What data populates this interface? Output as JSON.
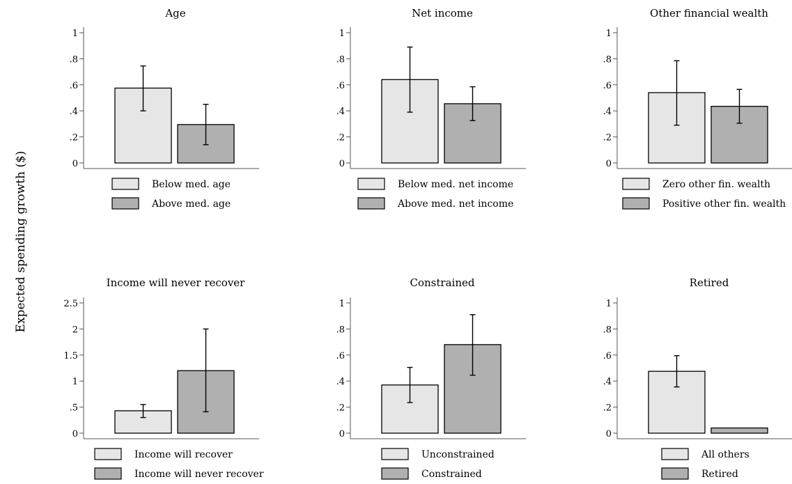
{
  "figure": {
    "ylabel": "Expected spending growth ($)",
    "colors": {
      "bar_light": "#e6e6e6",
      "bar_dark": "#b0b0b0",
      "stroke": "#000000",
      "axis": "#555555"
    }
  },
  "chart_data": [
    {
      "type": "bar",
      "title": "Age",
      "categories": [
        "Below med. age",
        "Above med. age"
      ],
      "values": [
        0.575,
        0.295
      ],
      "ci": [
        [
          0.4,
          0.745
        ],
        [
          0.14,
          0.45
        ]
      ],
      "ylim": [
        0,
        1
      ],
      "yticks": [
        0,
        0.2,
        0.4,
        0.6,
        0.8,
        1
      ],
      "yticklabels": [
        "0",
        ".2",
        ".4",
        ".6",
        ".8",
        "1"
      ],
      "legend": [
        "Below med. age",
        "Above med. age"
      ],
      "legend_position": "bottom"
    },
    {
      "type": "bar",
      "title": "Net income",
      "categories": [
        "Below med. net income",
        "Above med. net income"
      ],
      "values": [
        0.64,
        0.455
      ],
      "ci": [
        [
          0.39,
          0.89
        ],
        [
          0.325,
          0.585
        ]
      ],
      "ylim": [
        0,
        1
      ],
      "yticks": [
        0,
        0.2,
        0.4,
        0.6,
        0.8,
        1
      ],
      "yticklabels": [
        "0",
        ".2",
        ".4",
        ".6",
        ".8",
        "1"
      ],
      "legend": [
        "Below med. net income",
        "Above med. net income"
      ],
      "legend_position": "bottom"
    },
    {
      "type": "bar",
      "title": "Other financial wealth",
      "categories": [
        "Zero other fin. wealth",
        "Positive other fin. wealth"
      ],
      "values": [
        0.54,
        0.435
      ],
      "ci": [
        [
          0.29,
          0.785
        ],
        [
          0.305,
          0.565
        ]
      ],
      "ylim": [
        0,
        1
      ],
      "yticks": [
        0,
        0.2,
        0.4,
        0.6,
        0.8,
        1
      ],
      "yticklabels": [
        "0",
        ".2",
        ".4",
        ".6",
        ".8",
        "1"
      ],
      "legend": [
        "Zero other fin. wealth",
        "Positive other fin. wealth"
      ],
      "legend_position": "bottom"
    },
    {
      "type": "bar",
      "title": "Income will never recover",
      "categories": [
        "Income will recover",
        "Income will never recover"
      ],
      "values": [
        0.43,
        1.2
      ],
      "ci": [
        [
          0.3,
          0.55
        ],
        [
          0.41,
          2.0
        ]
      ],
      "ylim": [
        0,
        2.5
      ],
      "yticks": [
        0,
        0.5,
        1,
        1.5,
        2,
        2.5
      ],
      "yticklabels": [
        "0",
        ".5",
        "1",
        "1.5",
        "2",
        "2.5"
      ],
      "legend": [
        "Income will recover",
        "Income will never recover"
      ],
      "legend_position": "bottom"
    },
    {
      "type": "bar",
      "title": "Constrained",
      "categories": [
        "Unconstrained",
        "Constrained"
      ],
      "values": [
        0.37,
        0.68
      ],
      "ci": [
        [
          0.235,
          0.505
        ],
        [
          0.445,
          0.91
        ]
      ],
      "ylim": [
        0,
        1
      ],
      "yticks": [
        0,
        0.2,
        0.4,
        0.6,
        0.8,
        1
      ],
      "yticklabels": [
        "0",
        ".2",
        ".4",
        ".6",
        ".8",
        "1"
      ],
      "legend": [
        "Unconstrained",
        "Constrained"
      ],
      "legend_position": "bottom"
    },
    {
      "type": "bar",
      "title": "Retired",
      "categories": [
        "All others",
        "Retired"
      ],
      "values": [
        0.475,
        0.04
      ],
      "ci": [
        [
          0.355,
          0.595
        ],
        null
      ],
      "ylim": [
        0,
        1
      ],
      "yticks": [
        0,
        0.2,
        0.4,
        0.6,
        0.8,
        1
      ],
      "yticklabels": [
        "0",
        ".2",
        ".4",
        ".6",
        ".8",
        "1"
      ],
      "legend": [
        "All others",
        "Retired"
      ],
      "legend_position": "bottom"
    }
  ]
}
